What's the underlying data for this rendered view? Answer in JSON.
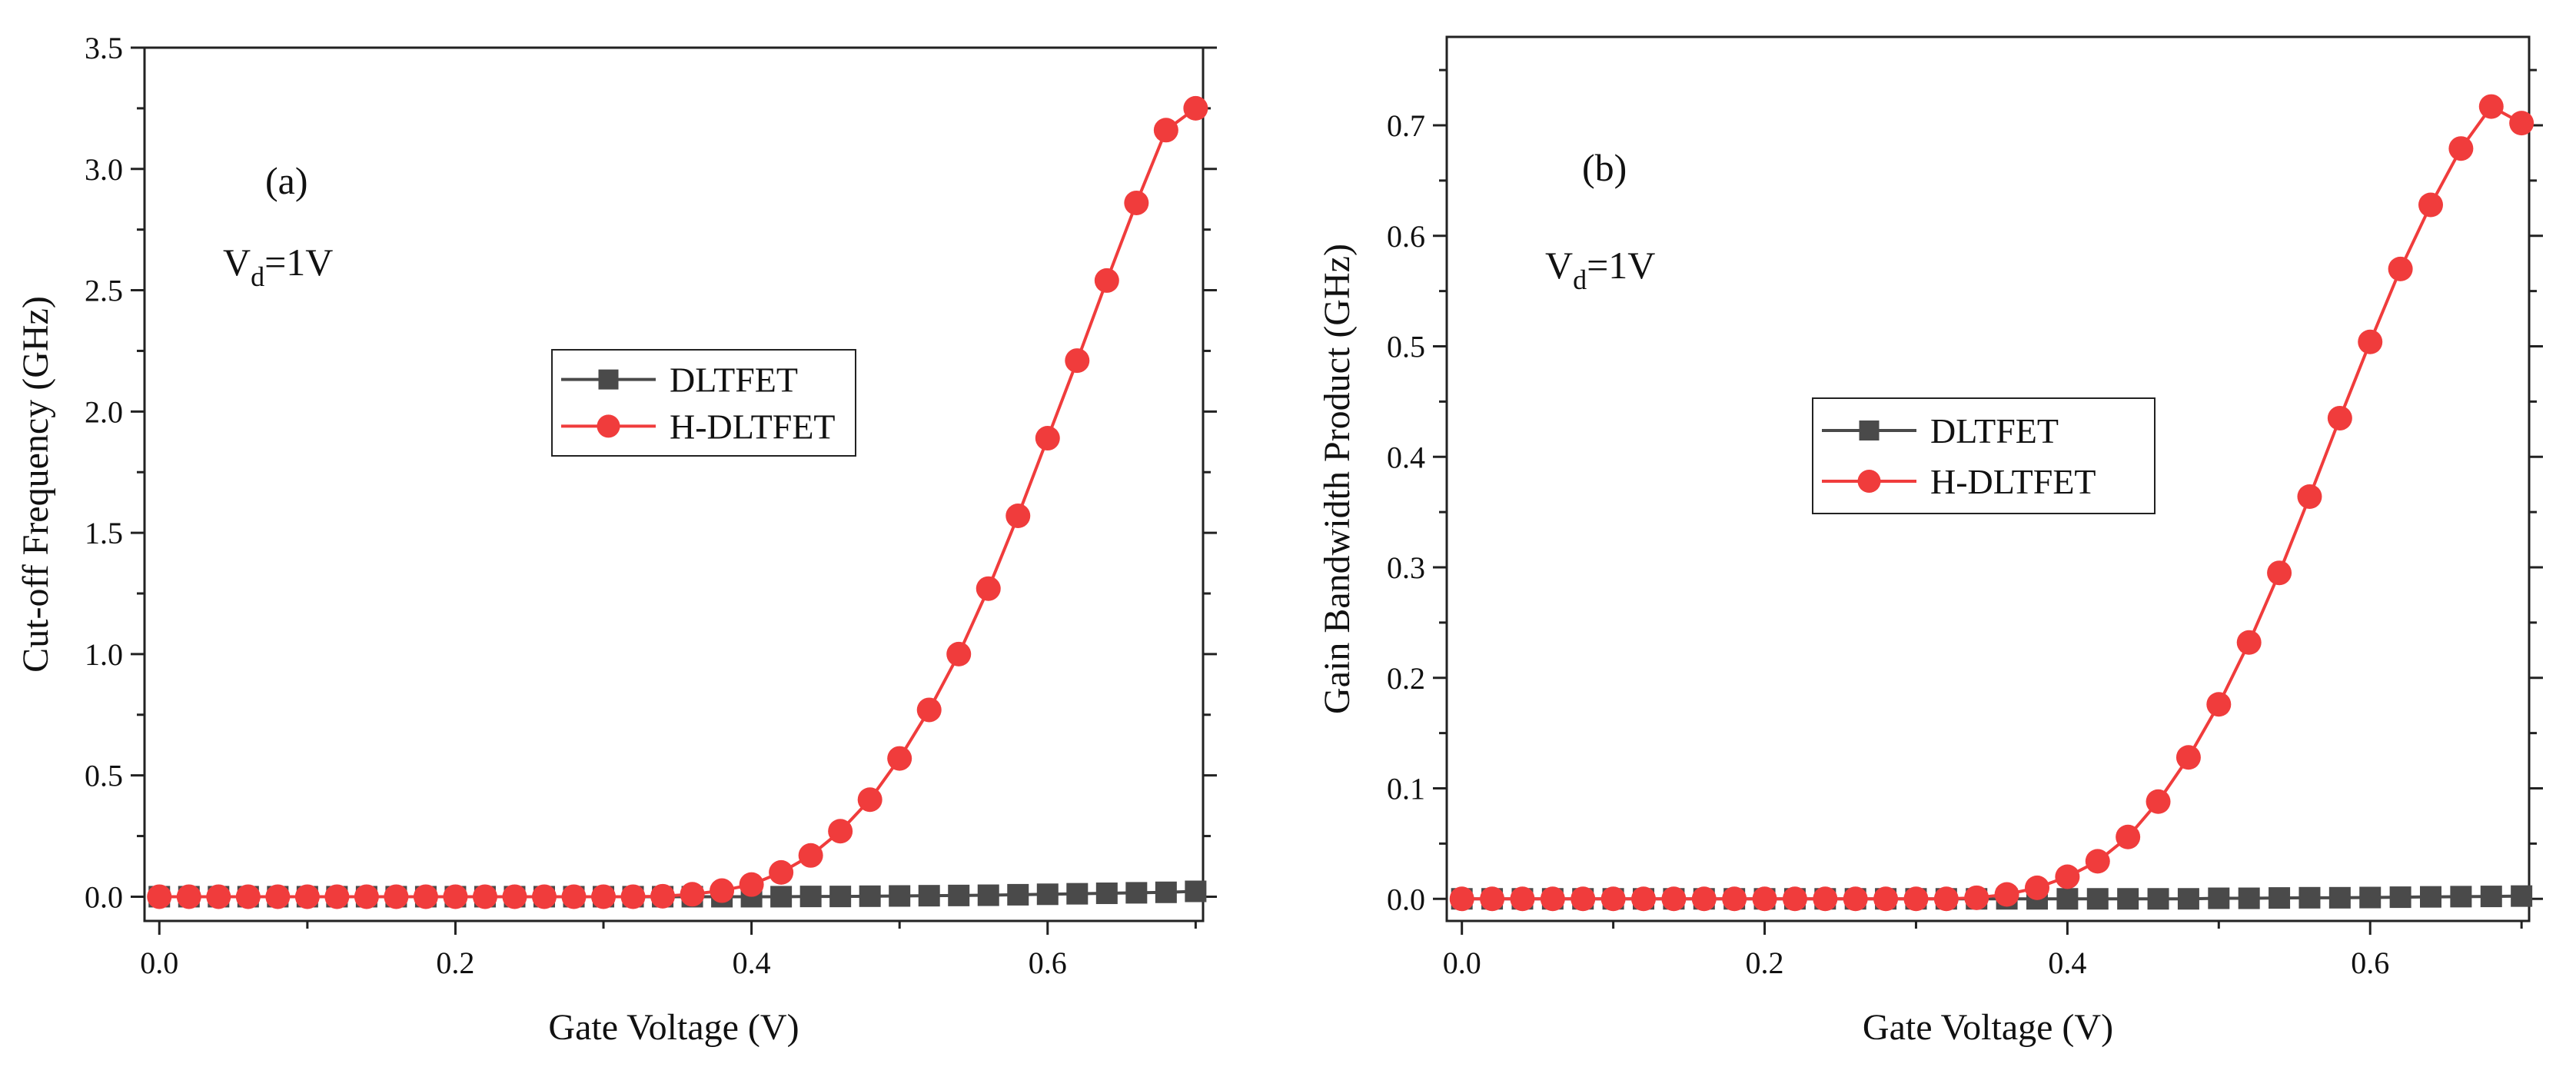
{
  "chart_data": [
    {
      "type": "line",
      "id": "a",
      "title": "",
      "panel_label": "(a)",
      "condition": {
        "main": "V",
        "sub": "d",
        "rest": "=1V"
      },
      "xlabel": "Gate Voltage (V)",
      "ylabel": "Cut-off Frequency (GHz)",
      "xlim": [
        -0.01,
        0.705
      ],
      "ylim": [
        -0.1,
        3.5
      ],
      "xticks": [
        0.0,
        0.2,
        0.4,
        0.6
      ],
      "xtick_labels": [
        "0.0",
        "0.2",
        "0.4",
        "0.6"
      ],
      "yticks": [
        0.0,
        0.5,
        1.0,
        1.5,
        2.0,
        2.5,
        3.0,
        3.5
      ],
      "ytick_labels": [
        "0.0",
        "0.5",
        "1.0",
        "1.5",
        "2.0",
        "2.5",
        "3.0",
        "3.5"
      ],
      "legend_position": "center",
      "x": [
        0.0,
        0.02,
        0.04,
        0.06,
        0.08,
        0.1,
        0.12,
        0.14,
        0.16,
        0.18,
        0.2,
        0.22,
        0.24,
        0.26,
        0.28,
        0.3,
        0.32,
        0.34,
        0.36,
        0.38,
        0.4,
        0.42,
        0.44,
        0.46,
        0.48,
        0.5,
        0.52,
        0.54,
        0.56,
        0.58,
        0.6,
        0.62,
        0.64,
        0.66,
        0.68,
        0.7
      ],
      "series": [
        {
          "name": "DLTFET",
          "color": "#4a4a4a",
          "marker": "square",
          "values": [
            0,
            0,
            0,
            0,
            0,
            0,
            0,
            0,
            0,
            0,
            0,
            0,
            0,
            0,
            0,
            0,
            0,
            0,
            0,
            0,
            0,
            0,
            0.001,
            0.001,
            0.002,
            0.003,
            0.004,
            0.005,
            0.006,
            0.008,
            0.01,
            0.012,
            0.014,
            0.016,
            0.018,
            0.022
          ]
        },
        {
          "name": "H-DLTFET",
          "color": "#f03c3c",
          "marker": "circle",
          "values": [
            0,
            0,
            0,
            0,
            0,
            0,
            0,
            0,
            0,
            0,
            0,
            0,
            0,
            0,
            0,
            0,
            0,
            0.002,
            0.01,
            0.025,
            0.05,
            0.1,
            0.17,
            0.27,
            0.4,
            0.57,
            0.77,
            1.0,
            1.27,
            1.57,
            1.89,
            2.21,
            2.54,
            2.86,
            3.16,
            3.25
          ]
        }
      ]
    },
    {
      "type": "line",
      "id": "b",
      "title": "",
      "panel_label": "(b)",
      "condition": {
        "main": "V",
        "sub": "d",
        "rest": "=1V"
      },
      "xlabel": "Gate Voltage (V)",
      "ylabel": "Gain Bandwidth Product (GHz)",
      "xlim": [
        -0.01,
        0.705
      ],
      "ylim": [
        -0.02,
        0.78
      ],
      "xticks": [
        0.0,
        0.2,
        0.4,
        0.6
      ],
      "xtick_labels": [
        "0.0",
        "0.2",
        "0.4",
        "0.6"
      ],
      "yticks": [
        0.0,
        0.1,
        0.2,
        0.3,
        0.4,
        0.5,
        0.6,
        0.7
      ],
      "ytick_labels": [
        "0.0",
        "0.1",
        "0.2",
        "0.3",
        "0.4",
        "0.5",
        "0.6",
        "0.7"
      ],
      "legend_position": "center",
      "x": [
        0.0,
        0.02,
        0.04,
        0.06,
        0.08,
        0.1,
        0.12,
        0.14,
        0.16,
        0.18,
        0.2,
        0.22,
        0.24,
        0.26,
        0.28,
        0.3,
        0.32,
        0.34,
        0.36,
        0.38,
        0.4,
        0.42,
        0.44,
        0.46,
        0.48,
        0.5,
        0.52,
        0.54,
        0.56,
        0.58,
        0.6,
        0.62,
        0.64,
        0.66,
        0.68,
        0.7
      ],
      "series": [
        {
          "name": "DLTFET",
          "color": "#4a4a4a",
          "marker": "square",
          "values": [
            0,
            0,
            0,
            0,
            0,
            0,
            0,
            0,
            0,
            0,
            0,
            0,
            0,
            0,
            0,
            0,
            0,
            0,
            0,
            0,
            0,
            0,
            0,
            0,
            0,
            0.0005,
            0.0005,
            0.0008,
            0.001,
            0.001,
            0.0012,
            0.0015,
            0.0018,
            0.002,
            0.0022,
            0.0025
          ]
        },
        {
          "name": "H-DLTFET",
          "color": "#f03c3c",
          "marker": "circle",
          "values": [
            0,
            0,
            0,
            0,
            0,
            0,
            0,
            0,
            0,
            0,
            0,
            0,
            0,
            0,
            0,
            0,
            0,
            0.001,
            0.004,
            0.01,
            0.02,
            0.034,
            0.056,
            0.088,
            0.128,
            0.176,
            0.232,
            0.295,
            0.364,
            0.435,
            0.504,
            0.57,
            0.628,
            0.679,
            0.717,
            0.702
          ]
        }
      ]
    }
  ]
}
